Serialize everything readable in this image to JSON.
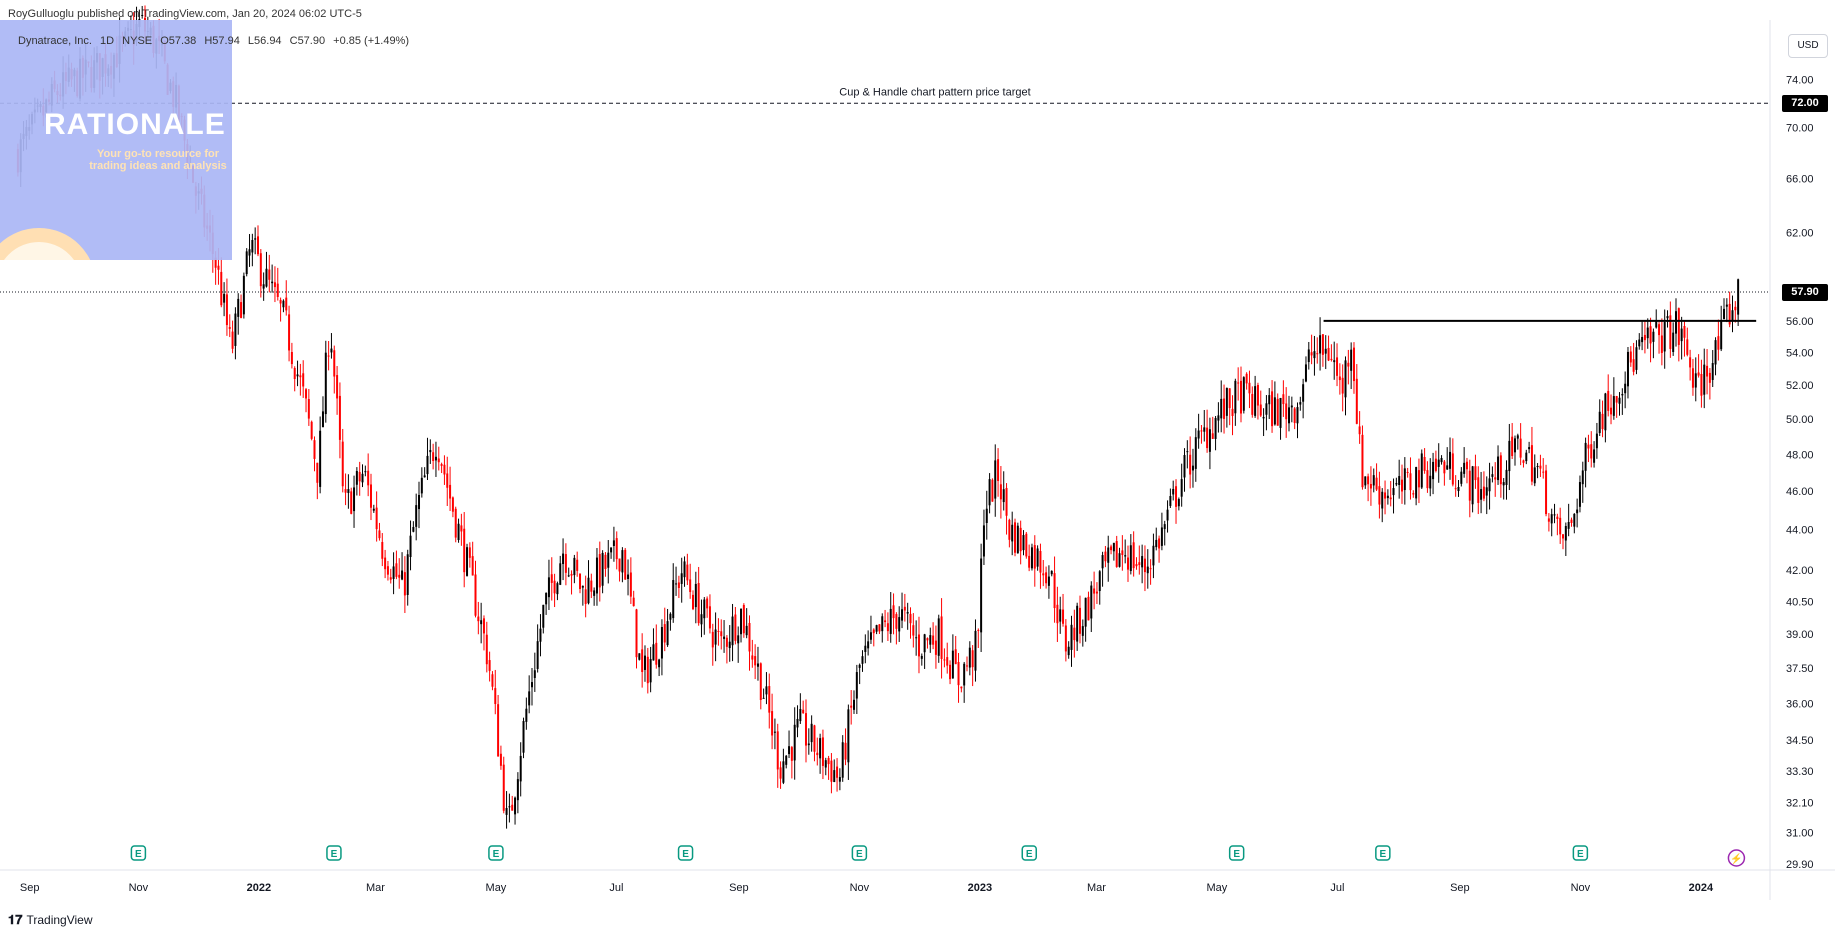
{
  "header": {
    "published": "RoyGulluoglu published on TradingView.com, Jan 20, 2024 06:02 UTC-5"
  },
  "legend": {
    "symbol": "Dynatrace, Inc.",
    "interval": "1D",
    "exchange": "NYSE",
    "open": "O57.38",
    "high": "H57.94",
    "low": "L56.94",
    "close": "C57.90",
    "change": "+0.85 (+1.49%)"
  },
  "currency_button": "USD",
  "watermark": {
    "text": "TradingView"
  },
  "logo": {
    "title": "RATIONALE",
    "subtitle": "Your go-to resource for trading ideas and analysis"
  },
  "colors": {
    "up": "#000000",
    "down": "#ff0000",
    "axis_text": "#131722",
    "tag_bg": "#000000"
  },
  "chart_data": {
    "type": "candlestick",
    "title": "Dynatrace, Inc. · 1D · NYSE",
    "price_scale": "log",
    "ylim": [
      29.9,
      78
    ],
    "price_ticks": [
      "74.00",
      "70.00",
      "66.00",
      "62.00",
      "56.00",
      "54.00",
      "52.00",
      "50.00",
      "48.00",
      "46.00",
      "44.00",
      "42.00",
      "40.50",
      "39.00",
      "37.50",
      "36.00",
      "34.50",
      "33.30",
      "32.10",
      "31.00",
      "29.90"
    ],
    "time_ticks": [
      {
        "label": "Sep",
        "t": 0.0
      },
      {
        "label": "Nov",
        "t": 61
      },
      {
        "label": "2022",
        "t": 122,
        "bold": true
      },
      {
        "label": "Mar",
        "t": 181
      },
      {
        "label": "May",
        "t": 242
      },
      {
        "label": "Jul",
        "t": 303
      },
      {
        "label": "Sep",
        "t": 365
      },
      {
        "label": "Nov",
        "t": 426
      },
      {
        "label": "2023",
        "t": 487,
        "bold": true
      },
      {
        "label": "Mar",
        "t": 546
      },
      {
        "label": "May",
        "t": 607
      },
      {
        "label": "Jul",
        "t": 668
      },
      {
        "label": "Sep",
        "t": 730
      },
      {
        "label": "Nov",
        "t": 791
      },
      {
        "label": "2024",
        "t": 852,
        "bold": true
      }
    ],
    "xlim": [
      -4,
      887
    ],
    "path": [
      [
        0,
        68
      ],
      [
        20,
        73
      ],
      [
        40,
        75
      ],
      [
        55,
        77
      ],
      [
        62,
        79
      ],
      [
        70,
        77
      ],
      [
        80,
        72
      ],
      [
        90,
        65
      ],
      [
        100,
        60
      ],
      [
        108,
        54
      ],
      [
        118,
        61
      ],
      [
        128,
        58
      ],
      [
        135,
        56
      ],
      [
        145,
        51
      ],
      [
        152,
        47
      ],
      [
        158,
        56
      ],
      [
        165,
        45
      ],
      [
        175,
        47
      ],
      [
        185,
        43
      ],
      [
        195,
        41
      ],
      [
        202,
        45
      ],
      [
        212,
        49
      ],
      [
        218,
        46
      ],
      [
        228,
        42
      ],
      [
        238,
        38
      ],
      [
        248,
        31
      ],
      [
        258,
        36
      ],
      [
        266,
        40
      ],
      [
        276,
        43
      ],
      [
        286,
        41
      ],
      [
        296,
        42
      ],
      [
        306,
        43
      ],
      [
        316,
        37
      ],
      [
        326,
        39
      ],
      [
        336,
        42
      ],
      [
        346,
        40
      ],
      [
        356,
        38.5
      ],
      [
        366,
        40
      ],
      [
        376,
        37
      ],
      [
        386,
        33.5
      ],
      [
        396,
        35
      ],
      [
        406,
        34
      ],
      [
        416,
        33
      ],
      [
        426,
        37.5
      ],
      [
        436,
        39
      ],
      [
        446,
        40
      ],
      [
        456,
        38.5
      ],
      [
        466,
        39
      ],
      [
        476,
        37
      ],
      [
        486,
        38.5
      ],
      [
        489,
        45
      ],
      [
        496,
        47
      ],
      [
        502,
        44
      ],
      [
        512,
        43
      ],
      [
        522,
        42
      ],
      [
        530,
        38.5
      ],
      [
        540,
        40
      ],
      [
        550,
        42
      ],
      [
        560,
        43
      ],
      [
        570,
        42
      ],
      [
        580,
        44
      ],
      [
        590,
        47
      ],
      [
        600,
        49
      ],
      [
        610,
        50.5
      ],
      [
        620,
        51.5
      ],
      [
        630,
        50.5
      ],
      [
        640,
        50.5
      ],
      [
        648,
        51
      ],
      [
        655,
        54
      ],
      [
        665,
        54
      ],
      [
        670,
        51.5
      ],
      [
        675,
        55
      ],
      [
        680,
        47
      ],
      [
        690,
        46
      ],
      [
        700,
        46
      ],
      [
        710,
        47
      ],
      [
        720,
        47.5
      ],
      [
        730,
        47
      ],
      [
        740,
        46
      ],
      [
        750,
        47
      ],
      [
        760,
        48.5
      ],
      [
        770,
        47
      ],
      [
        780,
        43.5
      ],
      [
        786,
        44
      ],
      [
        792,
        47
      ],
      [
        800,
        50
      ],
      [
        810,
        52
      ],
      [
        820,
        54
      ],
      [
        830,
        55
      ],
      [
        840,
        55.5
      ],
      [
        845,
        54
      ],
      [
        850,
        51.5
      ],
      [
        855,
        53
      ],
      [
        860,
        54
      ],
      [
        866,
        56.5
      ],
      [
        872,
        57.9
      ]
    ],
    "horizontal_lines": [
      {
        "name": "price-target",
        "price": 72.0,
        "style": "dashed",
        "label": "Cup & Handle chart pattern price target",
        "tag": "72.00"
      },
      {
        "name": "current-price",
        "price": 57.9,
        "style": "dotted",
        "tag": "57.90"
      }
    ],
    "resistance_segment": {
      "t_start": 661,
      "t_end": 880,
      "price": 56.0
    },
    "earnings_markers": [
      61,
      160,
      242,
      338,
      426,
      512,
      617,
      691,
      791
    ],
    "dividend_marker": 870
  }
}
